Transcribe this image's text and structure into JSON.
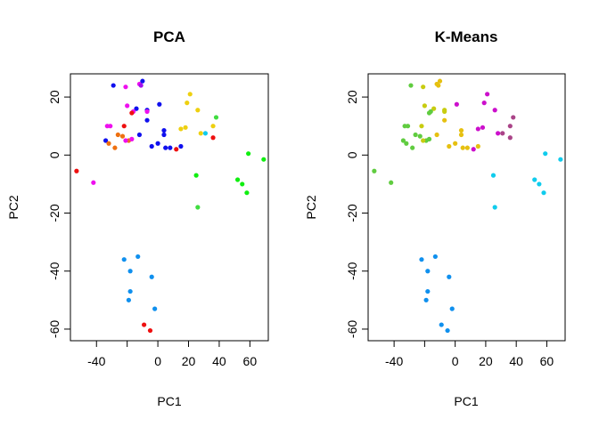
{
  "chart_data": [
    {
      "type": "scatter",
      "title": "PCA",
      "xlabel": "PC1",
      "ylabel": "PC2",
      "xticks": [
        -40,
        -20,
        0,
        20,
        40,
        60
      ],
      "xtick_labels": [
        "-40",
        "",
        "0",
        "20",
        "40",
        "60"
      ],
      "yticks": [
        -60,
        -40,
        -20,
        0,
        20
      ],
      "ytick_labels": [
        "-60",
        "-40",
        "-20",
        "0",
        "20"
      ],
      "xlim": [
        -57,
        72
      ],
      "ylim": [
        -64,
        28
      ],
      "grid": false,
      "points": [
        {
          "x": -29,
          "y": 24,
          "color": "#1010ee"
        },
        {
          "x": -21,
          "y": 23.5,
          "color": "#ee10ee"
        },
        {
          "x": -12,
          "y": 24.5,
          "color": "#ee10ee"
        },
        {
          "x": -10,
          "y": 25.5,
          "color": "#1010ee"
        },
        {
          "x": -11,
          "y": 24,
          "color": "#a010ee"
        },
        {
          "x": -7,
          "y": 15.5,
          "color": "#1010ee"
        },
        {
          "x": -7,
          "y": 15,
          "color": "#ee10ee"
        },
        {
          "x": 1,
          "y": 17.5,
          "color": "#1010ee"
        },
        {
          "x": -14,
          "y": 16,
          "color": "#1010ee"
        },
        {
          "x": -16,
          "y": 15,
          "color": "#ee10ee"
        },
        {
          "x": -20,
          "y": 17,
          "color": "#ee10ee"
        },
        {
          "x": -17,
          "y": 14.5,
          "color": "#ee1010"
        },
        {
          "x": -33,
          "y": 10,
          "color": "#ee10ee"
        },
        {
          "x": -31,
          "y": 10,
          "color": "#ee10ee"
        },
        {
          "x": -22,
          "y": 10,
          "color": "#ee1010"
        },
        {
          "x": -26,
          "y": 7,
          "color": "#ee7010"
        },
        {
          "x": -23,
          "y": 6.5,
          "color": "#ee7010"
        },
        {
          "x": -19,
          "y": 5,
          "color": "#ee7010"
        },
        {
          "x": -21,
          "y": 5,
          "color": "#ee10ee"
        },
        {
          "x": -17,
          "y": 5.5,
          "color": "#ee10ee"
        },
        {
          "x": -34,
          "y": 5,
          "color": "#1010ee"
        },
        {
          "x": -32,
          "y": 4,
          "color": "#ee7010"
        },
        {
          "x": -28,
          "y": 2.5,
          "color": "#ee7010"
        },
        {
          "x": -12,
          "y": 7,
          "color": "#1010ee"
        },
        {
          "x": -7,
          "y": 12,
          "color": "#1010ee"
        },
        {
          "x": -4,
          "y": 3,
          "color": "#1010ee"
        },
        {
          "x": 0,
          "y": 4,
          "color": "#1010ee"
        },
        {
          "x": 4,
          "y": 7,
          "color": "#1010ee"
        },
        {
          "x": 4,
          "y": 8.5,
          "color": "#1010ee"
        },
        {
          "x": 5,
          "y": 2.5,
          "color": "#1010ee"
        },
        {
          "x": 8,
          "y": 2.5,
          "color": "#1010ee"
        },
        {
          "x": 12,
          "y": 2,
          "color": "#ee1010"
        },
        {
          "x": 15,
          "y": 3,
          "color": "#1010ee"
        },
        {
          "x": 15,
          "y": 9,
          "color": "#eed010"
        },
        {
          "x": 18,
          "y": 9.5,
          "color": "#eed010"
        },
        {
          "x": 19,
          "y": 18,
          "color": "#eed010"
        },
        {
          "x": 21,
          "y": 21,
          "color": "#eed010"
        },
        {
          "x": 26,
          "y": 15.5,
          "color": "#eed010"
        },
        {
          "x": 28,
          "y": 7.5,
          "color": "#eed010"
        },
        {
          "x": 31,
          "y": 7.5,
          "color": "#10cced"
        },
        {
          "x": 36,
          "y": 6,
          "color": "#ee1010"
        },
        {
          "x": 36,
          "y": 10,
          "color": "#eed010"
        },
        {
          "x": 38,
          "y": 13,
          "color": "#40dd40"
        },
        {
          "x": 59,
          "y": 0.5,
          "color": "#10ee10"
        },
        {
          "x": 69,
          "y": -1.5,
          "color": "#10ee10"
        },
        {
          "x": 25,
          "y": -7,
          "color": "#10ee10"
        },
        {
          "x": 26,
          "y": -18,
          "color": "#40dd40"
        },
        {
          "x": 52,
          "y": -8.5,
          "color": "#10ee10"
        },
        {
          "x": 55,
          "y": -10,
          "color": "#10ee10"
        },
        {
          "x": 58,
          "y": -13,
          "color": "#10ee10"
        },
        {
          "x": -53,
          "y": -5.5,
          "color": "#ee1010"
        },
        {
          "x": -42,
          "y": -9.5,
          "color": "#ee10ee"
        },
        {
          "x": -13,
          "y": -35,
          "color": "#1090ee"
        },
        {
          "x": -22,
          "y": -36,
          "color": "#1090ee"
        },
        {
          "x": -18,
          "y": -40,
          "color": "#1090ee"
        },
        {
          "x": -4,
          "y": -42,
          "color": "#1090ee"
        },
        {
          "x": -18,
          "y": -47,
          "color": "#1090ee"
        },
        {
          "x": -19,
          "y": -50,
          "color": "#1090ee"
        },
        {
          "x": -2,
          "y": -53,
          "color": "#1090ee"
        },
        {
          "x": -9,
          "y": -58.5,
          "color": "#ee1010"
        },
        {
          "x": -5,
          "y": -60.5,
          "color": "#ee1010"
        }
      ]
    },
    {
      "type": "scatter",
      "title": "K-Means",
      "xlabel": "PC1",
      "ylabel": "PC2",
      "xticks": [
        -40,
        -20,
        0,
        20,
        40,
        60
      ],
      "xtick_labels": [
        "-40",
        "",
        "0",
        "20",
        "40",
        "60"
      ],
      "yticks": [
        -60,
        -40,
        -20,
        0,
        20
      ],
      "ytick_labels": [
        "-60",
        "-40",
        "-20",
        "0",
        "20"
      ],
      "xlim": [
        -57,
        72
      ],
      "ylim": [
        -64,
        28
      ],
      "grid": false,
      "points": [
        {
          "x": -29,
          "y": 24,
          "color": "#60cc40"
        },
        {
          "x": -21,
          "y": 23.5,
          "color": "#c8cc10"
        },
        {
          "x": -12,
          "y": 24.5,
          "color": "#e6c010"
        },
        {
          "x": -10,
          "y": 25.5,
          "color": "#e6c010"
        },
        {
          "x": -11,
          "y": 24,
          "color": "#e6c010"
        },
        {
          "x": -7,
          "y": 15.5,
          "color": "#c8cc10"
        },
        {
          "x": -7,
          "y": 15,
          "color": "#c8cc10"
        },
        {
          "x": 1,
          "y": 17.5,
          "color": "#cc10cc"
        },
        {
          "x": -14,
          "y": 16,
          "color": "#c8cc10"
        },
        {
          "x": -16,
          "y": 15,
          "color": "#60cc40"
        },
        {
          "x": -20,
          "y": 17,
          "color": "#c8cc10"
        },
        {
          "x": -17,
          "y": 14.5,
          "color": "#60cc40"
        },
        {
          "x": -33,
          "y": 10,
          "color": "#60cc40"
        },
        {
          "x": -31,
          "y": 10,
          "color": "#60cc40"
        },
        {
          "x": -22,
          "y": 10,
          "color": "#c8cc10"
        },
        {
          "x": -26,
          "y": 7,
          "color": "#60cc40"
        },
        {
          "x": -23,
          "y": 6.5,
          "color": "#60cc40"
        },
        {
          "x": -19,
          "y": 5,
          "color": "#60cc40"
        },
        {
          "x": -21,
          "y": 5,
          "color": "#c8cc10"
        },
        {
          "x": -17,
          "y": 5.5,
          "color": "#60cc40"
        },
        {
          "x": -34,
          "y": 5,
          "color": "#60cc40"
        },
        {
          "x": -32,
          "y": 4,
          "color": "#60cc40"
        },
        {
          "x": -28,
          "y": 2.5,
          "color": "#60cc40"
        },
        {
          "x": -12,
          "y": 7,
          "color": "#e6c010"
        },
        {
          "x": -7,
          "y": 12,
          "color": "#e6c010"
        },
        {
          "x": -4,
          "y": 3,
          "color": "#e6c010"
        },
        {
          "x": 0,
          "y": 4,
          "color": "#e6c010"
        },
        {
          "x": 4,
          "y": 7,
          "color": "#e6c010"
        },
        {
          "x": 4,
          "y": 8.5,
          "color": "#e6c010"
        },
        {
          "x": 5,
          "y": 2.5,
          "color": "#e6c010"
        },
        {
          "x": 8,
          "y": 2.5,
          "color": "#e6c010"
        },
        {
          "x": 12,
          "y": 2,
          "color": "#cc10cc"
        },
        {
          "x": 15,
          "y": 3,
          "color": "#e6c010"
        },
        {
          "x": 15,
          "y": 9,
          "color": "#cc10cc"
        },
        {
          "x": 18,
          "y": 9.5,
          "color": "#cc10cc"
        },
        {
          "x": 19,
          "y": 18,
          "color": "#cc10cc"
        },
        {
          "x": 21,
          "y": 21,
          "color": "#cc10cc"
        },
        {
          "x": 26,
          "y": 15.5,
          "color": "#cc10cc"
        },
        {
          "x": 28,
          "y": 7.5,
          "color": "#cc10cc"
        },
        {
          "x": 31,
          "y": 7.5,
          "color": "#aa4488"
        },
        {
          "x": 36,
          "y": 6,
          "color": "#aa4488"
        },
        {
          "x": 36,
          "y": 10,
          "color": "#aa4488"
        },
        {
          "x": 38,
          "y": 13,
          "color": "#aa4488"
        },
        {
          "x": 59,
          "y": 0.5,
          "color": "#10cced"
        },
        {
          "x": 69,
          "y": -1.5,
          "color": "#10cced"
        },
        {
          "x": 25,
          "y": -7,
          "color": "#10cced"
        },
        {
          "x": 26,
          "y": -18,
          "color": "#10cced"
        },
        {
          "x": 52,
          "y": -8.5,
          "color": "#10cced"
        },
        {
          "x": 55,
          "y": -10,
          "color": "#10cced"
        },
        {
          "x": 58,
          "y": -13,
          "color": "#10cced"
        },
        {
          "x": -53,
          "y": -5.5,
          "color": "#60cc40"
        },
        {
          "x": -42,
          "y": -9.5,
          "color": "#60cc40"
        },
        {
          "x": -13,
          "y": -35,
          "color": "#1090ee"
        },
        {
          "x": -22,
          "y": -36,
          "color": "#1090ee"
        },
        {
          "x": -18,
          "y": -40,
          "color": "#1090ee"
        },
        {
          "x": -4,
          "y": -42,
          "color": "#1090ee"
        },
        {
          "x": -18,
          "y": -47,
          "color": "#1090ee"
        },
        {
          "x": -19,
          "y": -50,
          "color": "#1090ee"
        },
        {
          "x": -2,
          "y": -53,
          "color": "#1090ee"
        },
        {
          "x": -9,
          "y": -58.5,
          "color": "#1090ee"
        },
        {
          "x": -5,
          "y": -60.5,
          "color": "#1090ee"
        }
      ]
    }
  ]
}
